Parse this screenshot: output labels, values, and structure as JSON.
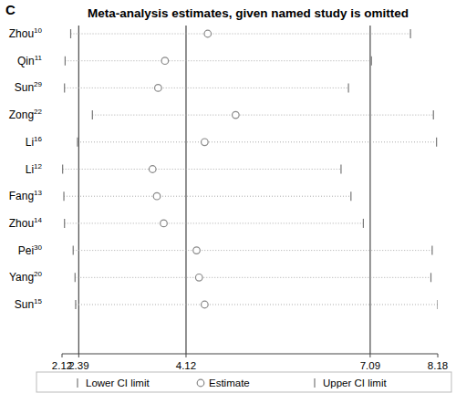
{
  "chart_data": {
    "type": "forest",
    "panel": "C",
    "title": "Meta-analysis estimates, given named study is omitted",
    "categories": [
      "Zhou",
      "Qin",
      "Sun",
      "Zong",
      "Li",
      "Li",
      "Fang",
      "Zhou",
      "Pei",
      "Yang",
      "Sun"
    ],
    "superscripts": [
      "10",
      "11",
      "29",
      "22",
      "16",
      "12",
      "13",
      "14",
      "30",
      "20",
      "15"
    ],
    "series": [
      {
        "name": "Lower CI limit",
        "color": "#777777",
        "marker": "bar",
        "values": [
          2.26,
          2.17,
          2.16,
          2.61,
          2.37,
          2.13,
          2.15,
          2.16,
          2.3,
          2.33,
          2.34
        ]
      },
      {
        "name": "Estimate",
        "color": "#888888",
        "marker": "circle",
        "values": [
          4.47,
          3.78,
          3.67,
          4.92,
          4.42,
          3.58,
          3.65,
          3.76,
          4.29,
          4.33,
          4.42
        ]
      },
      {
        "name": "Upper CI limit",
        "color": "#777777",
        "marker": "bar",
        "values": [
          7.74,
          7.11,
          6.74,
          8.11,
          8.16,
          6.62,
          6.78,
          6.98,
          8.09,
          8.07,
          8.18
        ]
      }
    ],
    "overall": {
      "lower": 2.39,
      "estimate": 4.12,
      "upper": 7.09
    },
    "xlim": [
      2.12,
      8.18
    ],
    "xticks": [
      2.12,
      2.39,
      4.12,
      7.09,
      8.18
    ],
    "legend": "bottom"
  }
}
